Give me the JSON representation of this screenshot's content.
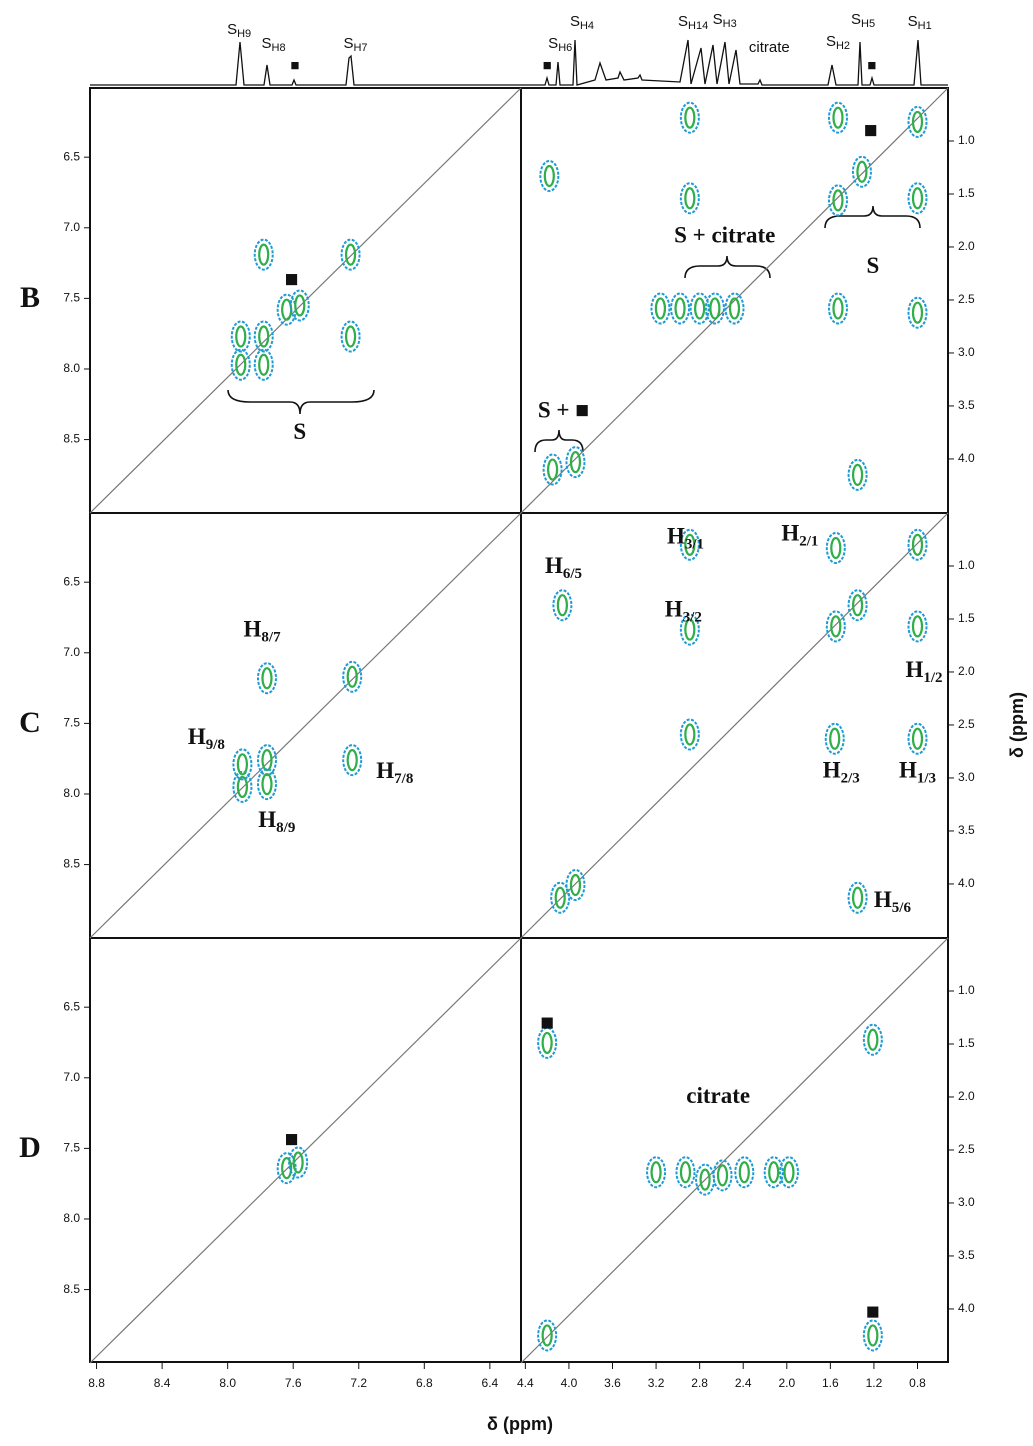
{
  "figure": {
    "xlabel": "δ (ppm)",
    "ylabel": "δ (ppm)",
    "left_x": {
      "xlim": [
        8.84,
        6.21
      ],
      "xticks": [
        8.8,
        8.4,
        {
          "value": 8,
          "label": "8.0"
        },
        7.6,
        7.2,
        6.8,
        6.4
      ]
    },
    "right_x": {
      "xlim": [
        4.44,
        0.52
      ],
      "xticks": [
        4.4,
        {
          "value": 4,
          "label": "4.0"
        },
        3.6,
        3.2,
        2.8,
        2.4,
        {
          "value": 2,
          "label": "2.0"
        },
        1.6,
        1.2,
        0.8
      ]
    },
    "left_y": {
      "ylim": [
        6.01,
        9.02
      ],
      "yticks": [
        6.5,
        {
          "value": 7,
          "label": "7.0"
        },
        7.5,
        {
          "value": 8,
          "label": "8.0"
        },
        8.5
      ]
    },
    "right_y": {
      "ylim": [
        0.5,
        4.51
      ],
      "yticks": [
        {
          "value": 1,
          "label": "1.0"
        },
        1.5,
        {
          "value": 2,
          "label": "2.0"
        },
        2.5,
        {
          "value": 3,
          "label": "3.0"
        },
        3.5,
        {
          "value": 4,
          "label": "4.0"
        }
      ]
    },
    "top_labels_left": [
      {
        "text": "S",
        "sub": "H9",
        "x": 7.93
      },
      {
        "text": "S",
        "sub": "H8",
        "x": 7.72
      },
      {
        "text": "■",
        "x": 7.59
      },
      {
        "text": "S",
        "sub": "H7",
        "x": 7.22
      }
    ],
    "top_labels_right": [
      {
        "text": "■",
        "x": 4.2
      },
      {
        "text": "S",
        "sub": "H6",
        "x": 4.08
      },
      {
        "text": "S",
        "sub": "H4",
        "x": 3.88
      },
      {
        "text": "S",
        "sub": "H14",
        "x": 2.86
      },
      {
        "text": "S",
        "sub": "H3",
        "x": 2.57
      },
      {
        "text": "citrate",
        "x": 2.16
      },
      {
        "text": "S",
        "sub": "H2",
        "x": 1.53
      },
      {
        "text": "S",
        "sub": "H5",
        "x": 1.3
      },
      {
        "text": "■",
        "x": 1.22
      },
      {
        "text": "S",
        "sub": "H1",
        "x": 0.78
      }
    ],
    "rows": [
      {
        "label": "B",
        "left": {
          "peaks": [
            [
              7.78,
              7.19
            ],
            [
              7.25,
              7.19
            ],
            [
              7.25,
              7.77
            ],
            [
              7.78,
              7.77
            ],
            [
              7.92,
              7.77
            ],
            [
              7.92,
              7.97
            ],
            [
              7.78,
              7.97
            ],
            [
              7.64,
              7.58
            ],
            [
              7.56,
              7.55
            ]
          ],
          "annotations": [
            {
              "text": "■",
              "x": 7.61,
              "y": 7.38
            },
            {
              "text": "S",
              "x": 7.56,
              "y": 8.46
            }
          ]
        },
        "right": {
          "peaks": [
            [
              0.8,
              0.82
            ],
            [
              1.53,
              0.78
            ],
            [
              1.31,
              1.29
            ],
            [
              1.53,
              1.56
            ],
            [
              0.8,
              1.54
            ],
            [
              4.18,
              1.33
            ],
            [
              2.89,
              0.78
            ],
            [
              2.89,
              1.54
            ],
            [
              3.16,
              2.58
            ],
            [
              2.98,
              2.58
            ],
            [
              2.8,
              2.58
            ],
            [
              2.66,
              2.58
            ],
            [
              2.48,
              2.58
            ],
            [
              1.53,
              2.58
            ],
            [
              0.8,
              2.62
            ],
            [
              4.15,
              4.1
            ],
            [
              3.94,
              4.03
            ],
            [
              1.35,
              4.15
            ]
          ],
          "annotations": [
            {
              "text": "■",
              "x": 1.23,
              "y": 0.92
            },
            {
              "text": "S + citrate",
              "x": 2.57,
              "y": 1.91
            },
            {
              "text": "S",
              "x": 1.21,
              "y": 2.2
            },
            {
              "text": "S + ■",
              "x": 4.05,
              "y": 3.56
            }
          ]
        }
      },
      {
        "label": "C",
        "left": {
          "peaks": [
            [
              7.76,
              7.18
            ],
            [
              7.24,
              7.17
            ],
            [
              7.24,
              7.76
            ],
            [
              7.76,
              7.76
            ],
            [
              7.76,
              7.93
            ],
            [
              7.91,
              7.95
            ],
            [
              7.91,
              7.79
            ]
          ],
          "annotations": [
            {
              "text": "H",
              "sub": "8/7",
              "x": 7.79,
              "y": 6.85
            },
            {
              "text": "H",
              "sub": "9/8",
              "x": 8.13,
              "y": 7.61
            },
            {
              "text": "H",
              "sub": "7/8",
              "x": 6.98,
              "y": 7.85
            },
            {
              "text": "H",
              "sub": "8/9",
              "x": 7.7,
              "y": 8.2
            }
          ]
        },
        "right": {
          "peaks": [
            [
              0.8,
              0.8
            ],
            [
              1.55,
              0.83
            ],
            [
              2.89,
              0.8
            ],
            [
              1.35,
              1.37
            ],
            [
              1.55,
              1.57
            ],
            [
              0.8,
              1.57
            ],
            [
              4.06,
              1.37
            ],
            [
              2.89,
              1.6
            ],
            [
              2.89,
              2.59
            ],
            [
              1.56,
              2.63
            ],
            [
              0.8,
              2.63
            ],
            [
              4.08,
              4.13
            ],
            [
              3.94,
              4.01
            ],
            [
              1.35,
              4.13
            ]
          ],
          "annotations": [
            {
              "text": "H",
              "sub": "3/1",
              "x": 2.93,
              "y": 0.74
            },
            {
              "text": "H",
              "sub": "2/1",
              "x": 1.88,
              "y": 0.71
            },
            {
              "text": "H",
              "sub": "6/5",
              "x": 4.05,
              "y": 1.02
            },
            {
              "text": "H",
              "sub": "3/2",
              "x": 2.95,
              "y": 1.43
            },
            {
              "text": "H",
              "sub": "1/2",
              "x": 0.74,
              "y": 2.0
            },
            {
              "text": "H",
              "sub": "2/3",
              "x": 1.5,
              "y": 2.95
            },
            {
              "text": "H",
              "sub": "1/3",
              "x": 0.8,
              "y": 2.95
            },
            {
              "text": "H",
              "sub": "5/6",
              "x": 1.03,
              "y": 4.17
            }
          ]
        }
      },
      {
        "label": "D",
        "left": {
          "peaks": [
            [
              7.64,
              7.64
            ],
            [
              7.57,
              7.6
            ]
          ],
          "annotations": [
            {
              "text": "■",
              "x": 7.61,
              "y": 7.45
            }
          ]
        },
        "right": {
          "peaks": [
            [
              4.2,
              1.49
            ],
            [
              1.21,
              1.46
            ],
            [
              3.2,
              2.71
            ],
            [
              2.93,
              2.71
            ],
            [
              2.75,
              2.78
            ],
            [
              2.59,
              2.74
            ],
            [
              2.39,
              2.71
            ],
            [
              2.12,
              2.71
            ],
            [
              1.98,
              2.71
            ],
            [
              4.2,
              4.25
            ],
            [
              1.21,
              4.25
            ]
          ],
          "annotations": [
            {
              "text": "■",
              "x": 4.2,
              "y": 1.32
            },
            {
              "text": "citrate",
              "x": 2.63,
              "y": 2.01
            },
            {
              "text": "■",
              "x": 1.21,
              "y": 4.05
            }
          ]
        }
      }
    ]
  }
}
